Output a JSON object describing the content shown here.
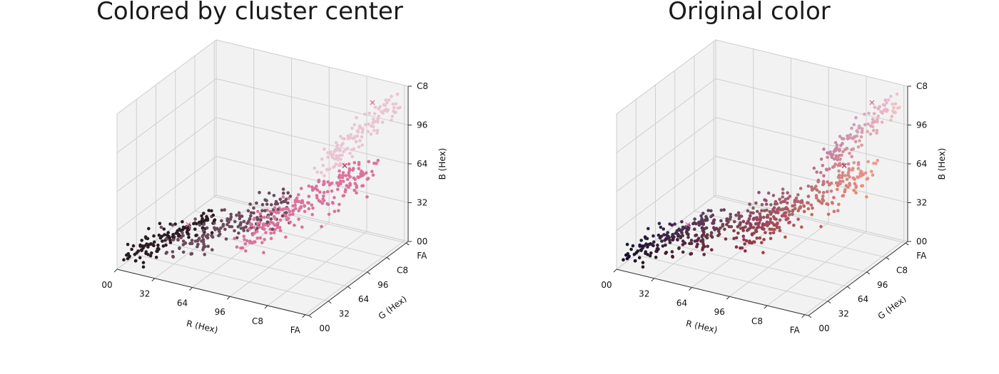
{
  "chart_data": [
    {
      "type": "scatter",
      "projection": "3d",
      "title": "Colored by cluster center",
      "xlabel": "R (Hex)",
      "ylabel": "G (Hex)",
      "zlabel": "B (Hex)",
      "ticks": [
        "00",
        "32",
        "64",
        "96",
        "C8",
        "FA"
      ],
      "ztick_labels": [
        "00",
        "32",
        "64",
        "96",
        "C8"
      ],
      "xlim": [
        0,
        255
      ],
      "ylim": [
        0,
        255
      ],
      "zlim": [
        0,
        200
      ],
      "grid": true,
      "colors": [
        "#2a1c22",
        "#6b4a5b",
        "#d9739c",
        "#e9c5d3"
      ],
      "centroid_markers": [
        {
          "r": 70,
          "g": 48,
          "b": 56,
          "color": "#d9739c"
        },
        {
          "r": 225,
          "g": 150,
          "b": 130,
          "color": "#b0405e"
        },
        {
          "r": 236,
          "g": 200,
          "b": 195,
          "color": "#d9739c"
        }
      ]
    },
    {
      "type": "scatter",
      "projection": "3d",
      "title": "Original color",
      "xlabel": "R (Hex)",
      "ylabel": "G (Hex)",
      "zlabel": "B (Hex)",
      "ticks": [
        "00",
        "32",
        "64",
        "96",
        "C8",
        "FA"
      ],
      "ztick_labels": [
        "00",
        "32",
        "64",
        "96",
        "C8"
      ],
      "xlim": [
        0,
        255
      ],
      "ylim": [
        0,
        255
      ],
      "zlim": [
        0,
        200
      ],
      "grid": true,
      "colors": "original",
      "centroid_markers": [
        {
          "r": 70,
          "g": 48,
          "b": 56,
          "color": "#d9739c"
        },
        {
          "r": 225,
          "g": 150,
          "b": 130,
          "color": "#b0405e"
        },
        {
          "r": 236,
          "g": 200,
          "b": 195,
          "color": "#d9739c"
        }
      ]
    }
  ]
}
